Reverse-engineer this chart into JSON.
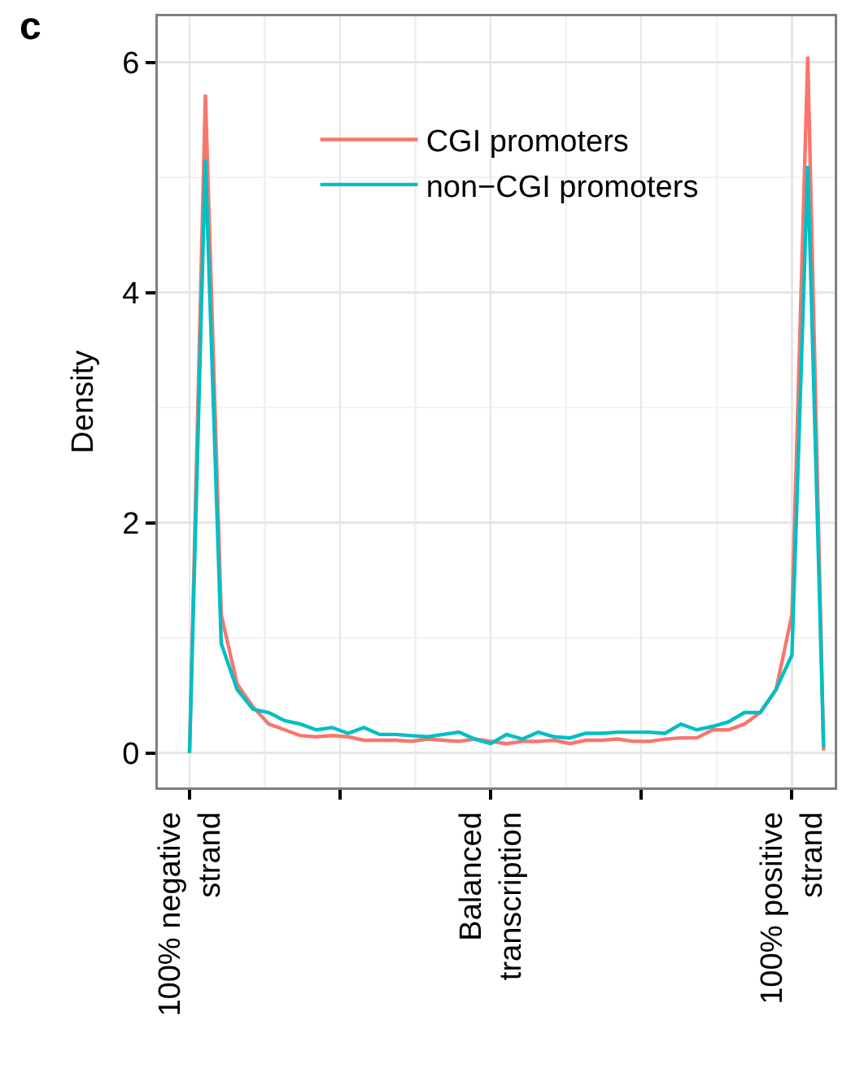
{
  "chart_data": {
    "type": "line",
    "ylabel": "Density",
    "annotations": [
      "c"
    ],
    "categories": [
      "100% negative\nstrand",
      null,
      null,
      null,
      null,
      null,
      null,
      null,
      null,
      null,
      null,
      null,
      null,
      null,
      null,
      null,
      null,
      null,
      null,
      "Balanced\ntranscription",
      null,
      null,
      null,
      null,
      null,
      null,
      null,
      null,
      null,
      null,
      null,
      null,
      null,
      null,
      null,
      null,
      null,
      null,
      "100% positive\nstrand",
      null,
      null
    ],
    "series": [
      {
        "name": "CGI promoters",
        "color": "#f8766d",
        "values": [
          0,
          5.72,
          1.2,
          0.6,
          0.4,
          0.25,
          0.2,
          0.15,
          0.14,
          0.15,
          0.14,
          0.11,
          0.11,
          0.11,
          0.1,
          0.12,
          0.11,
          0.1,
          0.12,
          0.1,
          0.08,
          0.1,
          0.1,
          0.11,
          0.08,
          0.11,
          0.11,
          0.12,
          0.1,
          0.1,
          0.12,
          0.13,
          0.13,
          0.2,
          0.2,
          0.25,
          0.35,
          0.55,
          1.2,
          6.05,
          0.02
        ]
      },
      {
        "name": "non−CGI promoters",
        "color": "#00bfc4",
        "values": [
          0,
          5.15,
          0.95,
          0.55,
          0.38,
          0.35,
          0.28,
          0.25,
          0.2,
          0.22,
          0.17,
          0.22,
          0.16,
          0.16,
          0.15,
          0.14,
          0.16,
          0.18,
          0.12,
          0.08,
          0.16,
          0.12,
          0.18,
          0.14,
          0.13,
          0.17,
          0.17,
          0.18,
          0.18,
          0.18,
          0.17,
          0.25,
          0.2,
          0.23,
          0.27,
          0.35,
          0.35,
          0.55,
          0.85,
          5.1,
          0.05
        ]
      }
    ],
    "ylim": [
      -0.3,
      6.4
    ],
    "yticks": [
      0,
      2,
      4,
      6
    ],
    "grid": true,
    "legend": "top",
    "marker": "none",
    "line_style": "solid"
  }
}
